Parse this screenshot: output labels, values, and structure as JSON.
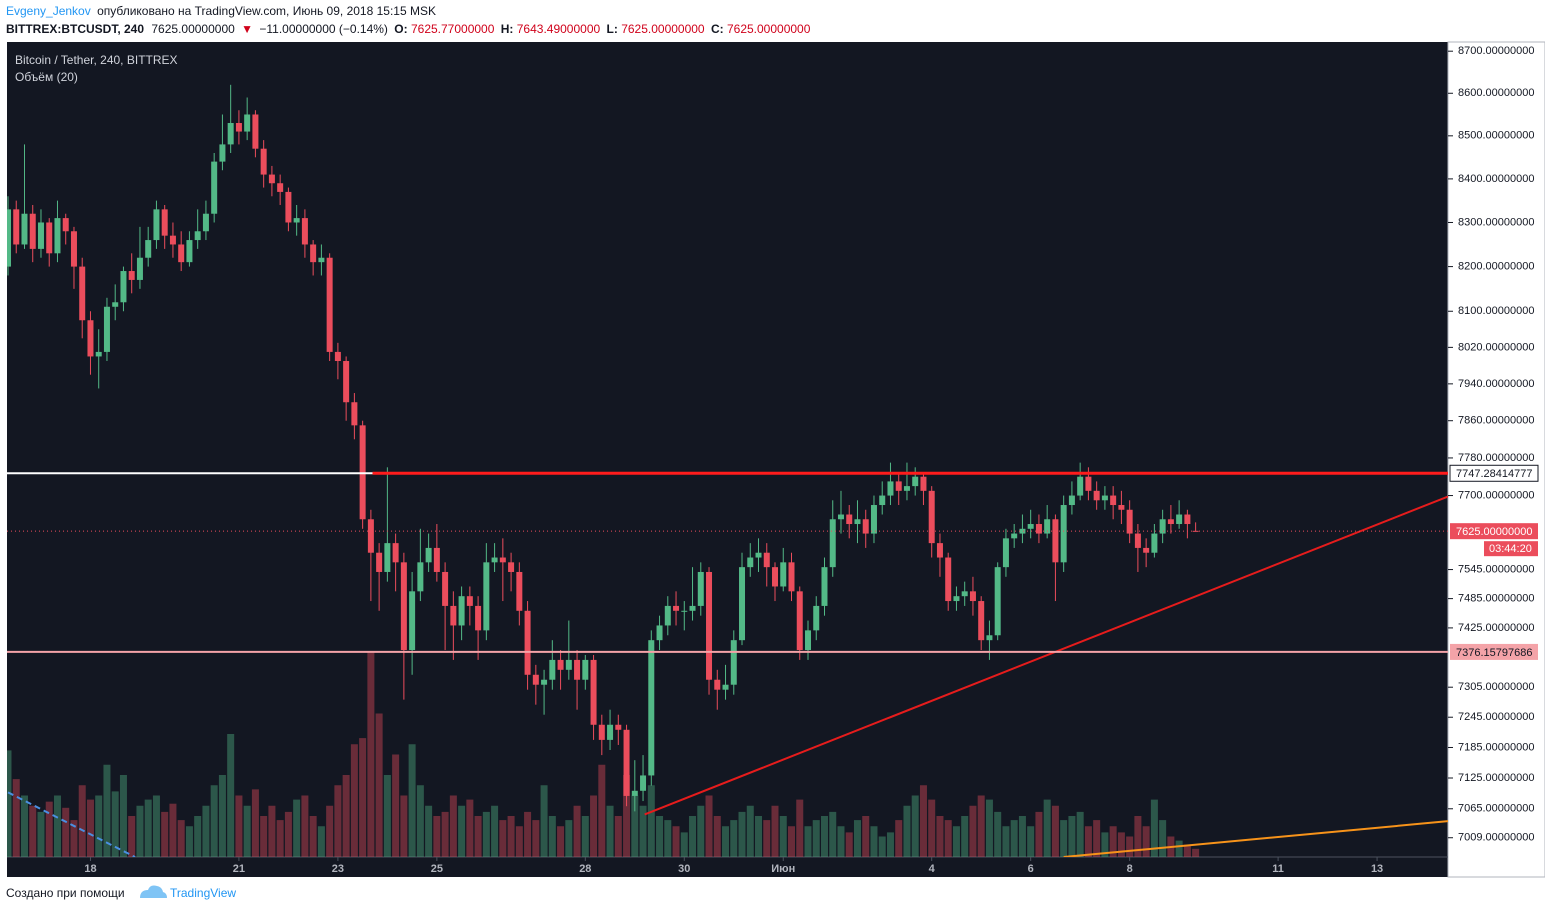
{
  "header": {
    "author": "Evgeny_Jenkov",
    "published": "опубликовано на TradingView.com, Июнь 09, 2018 15:15 MSK",
    "symbol": "BITTREX:BTCUSDT, 240",
    "last": "7625.00000000",
    "arrow": "▼",
    "change": "−11.00000000 (−0.14%)",
    "o_label": "O:",
    "o": "7625.77000000",
    "h_label": "H:",
    "h": "7643.49000000",
    "l_label": "L:",
    "l": "7625.00000000",
    "c_label": "C:",
    "c": "7625.00000000"
  },
  "footer": {
    "credit": "Создано при помощи",
    "brand": "TradingView"
  },
  "chart_data": {
    "type": "candlestick",
    "title": "Bitcoin / Tether, 240, BITTREX",
    "indicator": "Объём (20)",
    "log": true,
    "up_color": "#53b987",
    "down_color": "#eb4d5c",
    "background": "#131722",
    "open": [
      8200,
      8330,
      8250,
      8320,
      8240,
      8300,
      8230,
      8310,
      8280,
      8200,
      8080,
      8000,
      8010,
      8110,
      8120,
      8190,
      8170,
      8220,
      8260,
      8330,
      8270,
      8250,
      8210,
      8260,
      8280,
      8320,
      8440,
      8480,
      8530,
      8510,
      8550,
      8470,
      8410,
      8390,
      8370,
      8300,
      8310,
      8250,
      8210,
      8220,
      8010,
      7990,
      7900,
      7850,
      7650,
      7580,
      7540,
      7600,
      7560,
      7380,
      7500,
      7560,
      7590,
      7540,
      7470,
      7430,
      7490,
      7470,
      7420,
      7560,
      7570,
      7560,
      7540,
      7460,
      7330,
      7310,
      7320,
      7360,
      7340,
      7360,
      7320,
      7360,
      7230,
      7200,
      7230,
      7220,
      7090,
      7100,
      7130,
      7400,
      7430,
      7470,
      7460,
      7460,
      7470,
      7540,
      7320,
      7300,
      7310,
      7400,
      7550,
      7570,
      7580,
      7550,
      7510,
      7560,
      7500,
      7380,
      7420,
      7470,
      7550,
      7650,
      7660,
      7640,
      7650,
      7620,
      7680,
      7700,
      7730,
      7710,
      7720,
      7740,
      7710,
      7600,
      7570,
      7480,
      7490,
      7500,
      7480,
      7400,
      7410,
      7550,
      7610,
      7620,
      7630,
      7640,
      7620,
      7650,
      7560,
      7680,
      7700,
      7740,
      7710,
      7690,
      7700,
      7680,
      7670,
      7620,
      7590,
      7580,
      7620,
      7650,
      7640,
      7660,
      7625.77
    ],
    "high": [
      8360,
      8350,
      8480,
      8340,
      8330,
      8310,
      8350,
      8320,
      8290,
      8220,
      8100,
      8060,
      8130,
      8160,
      8200,
      8230,
      8290,
      8290,
      8350,
      8340,
      8300,
      8280,
      8280,
      8330,
      8350,
      8460,
      8550,
      8620,
      8560,
      8590,
      8560,
      8490,
      8430,
      8410,
      8380,
      8340,
      8330,
      8260,
      8250,
      8230,
      8030,
      8000,
      7920,
      7860,
      7670,
      7600,
      7760,
      7620,
      7580,
      7540,
      7630,
      7620,
      7640,
      7560,
      7500,
      7510,
      7510,
      7490,
      7600,
      7600,
      7610,
      7580,
      7560,
      7480,
      7350,
      7340,
      7400,
      7380,
      7440,
      7380,
      7370,
      7370,
      7250,
      7260,
      7250,
      7230,
      7160,
      7170,
      7420,
      7450,
      7490,
      7500,
      7480,
      7550,
      7560,
      7550,
      7340,
      7350,
      7420,
      7580,
      7600,
      7610,
      7600,
      7560,
      7590,
      7580,
      7510,
      7440,
      7490,
      7570,
      7690,
      7710,
      7680,
      7690,
      7670,
      7700,
      7730,
      7770,
      7750,
      7770,
      7760,
      7750,
      7720,
      7620,
      7580,
      7510,
      7520,
      7530,
      7490,
      7440,
      7560,
      7630,
      7640,
      7660,
      7670,
      7660,
      7680,
      7660,
      7700,
      7730,
      7770,
      7760,
      7730,
      7720,
      7720,
      7710,
      7690,
      7640,
      7610,
      7640,
      7670,
      7680,
      7690,
      7670,
      7643.49
    ],
    "low": [
      8180,
      8230,
      8240,
      8210,
      8220,
      8200,
      8210,
      8250,
      8150,
      8040,
      7960,
      7930,
      7990,
      8080,
      8100,
      8140,
      8150,
      8200,
      8240,
      8240,
      8220,
      8190,
      8200,
      8240,
      8260,
      8300,
      8420,
      8460,
      8480,
      8490,
      8450,
      8380,
      8360,
      8340,
      8280,
      8270,
      8220,
      8180,
      8180,
      7990,
      7950,
      7860,
      7820,
      7630,
      7480,
      7460,
      7520,
      7500,
      7280,
      7330,
      7480,
      7540,
      7520,
      7380,
      7360,
      7400,
      7430,
      7360,
      7400,
      7540,
      7480,
      7500,
      7430,
      7300,
      7270,
      7250,
      7300,
      7300,
      7320,
      7260,
      7300,
      7200,
      7170,
      7180,
      7190,
      7070,
      7060,
      7080,
      7110,
      7380,
      7410,
      7430,
      7420,
      7440,
      7450,
      7290,
      7260,
      7280,
      7290,
      7390,
      7530,
      7540,
      7510,
      7480,
      7500,
      7480,
      7360,
      7360,
      7400,
      7450,
      7530,
      7620,
      7610,
      7600,
      7590,
      7600,
      7660,
      7680,
      7680,
      7690,
      7700,
      7680,
      7570,
      7530,
      7460,
      7460,
      7470,
      7450,
      7380,
      7360,
      7400,
      7530,
      7590,
      7600,
      7610,
      7600,
      7610,
      7480,
      7540,
      7660,
      7690,
      7690,
      7670,
      7670,
      7650,
      7640,
      7600,
      7540,
      7550,
      7570,
      7600,
      7620,
      7630,
      7610,
      7625
    ],
    "close": [
      8330,
      8250,
      8320,
      8240,
      8300,
      8230,
      8310,
      8280,
      8200,
      8080,
      8000,
      8010,
      8110,
      8120,
      8190,
      8170,
      8220,
      8260,
      8330,
      8270,
      8250,
      8210,
      8260,
      8280,
      8320,
      8440,
      8480,
      8530,
      8510,
      8550,
      8470,
      8410,
      8390,
      8370,
      8300,
      8310,
      8250,
      8210,
      8220,
      8010,
      7990,
      7900,
      7850,
      7650,
      7580,
      7540,
      7600,
      7560,
      7380,
      7500,
      7560,
      7590,
      7540,
      7470,
      7430,
      7490,
      7470,
      7420,
      7560,
      7570,
      7560,
      7540,
      7460,
      7330,
      7310,
      7320,
      7360,
      7340,
      7360,
      7320,
      7360,
      7230,
      7200,
      7230,
      7220,
      7090,
      7100,
      7130,
      7400,
      7430,
      7470,
      7460,
      7460,
      7470,
      7540,
      7320,
      7300,
      7310,
      7400,
      7550,
      7570,
      7580,
      7550,
      7510,
      7560,
      7500,
      7380,
      7420,
      7470,
      7550,
      7650,
      7660,
      7640,
      7650,
      7620,
      7680,
      7700,
      7730,
      7710,
      7720,
      7740,
      7710,
      7600,
      7570,
      7480,
      7490,
      7500,
      7480,
      7400,
      7410,
      7550,
      7610,
      7620,
      7630,
      7640,
      7620,
      7650,
      7560,
      7680,
      7700,
      7740,
      7710,
      7690,
      7700,
      7680,
      7670,
      7620,
      7590,
      7580,
      7620,
      7650,
      7640,
      7660,
      7640,
      7625
    ],
    "volume": [
      52,
      38,
      30,
      25,
      22,
      27,
      30,
      24,
      18,
      35,
      28,
      30,
      45,
      32,
      40,
      20,
      25,
      28,
      30,
      22,
      26,
      18,
      15,
      20,
      25,
      35,
      40,
      60,
      30,
      25,
      33,
      20,
      25,
      18,
      22,
      28,
      30,
      20,
      15,
      25,
      35,
      40,
      55,
      58,
      100,
      70,
      40,
      50,
      30,
      55,
      35,
      25,
      20,
      22,
      30,
      25,
      28,
      20,
      22,
      25,
      18,
      20,
      15,
      22,
      18,
      35,
      20,
      15,
      18,
      25,
      20,
      30,
      45,
      25,
      20,
      40,
      30,
      25,
      35,
      20,
      18,
      15,
      12,
      20,
      25,
      30,
      20,
      15,
      18,
      22,
      25,
      20,
      18,
      25,
      20,
      15,
      28,
      15,
      18,
      20,
      22,
      15,
      12,
      18,
      20,
      15,
      10,
      12,
      18,
      25,
      30,
      35,
      28,
      20,
      18,
      15,
      20,
      25,
      30,
      28,
      22,
      15,
      18,
      20,
      15,
      22,
      28,
      25,
      18,
      20,
      22,
      15,
      18,
      12,
      15,
      12,
      10,
      20,
      15,
      28,
      18,
      10,
      8,
      6,
      4
    ],
    "volume_ylim": [
      0,
      100
    ],
    "xlim": [
      -0.12,
      174.6
    ],
    "xticks": [
      {
        "value": 10,
        "label": "18"
      },
      {
        "value": 28,
        "label": "21"
      },
      {
        "value": 40,
        "label": "23"
      },
      {
        "value": 52,
        "label": "25"
      },
      {
        "value": 70,
        "label": "28"
      },
      {
        "value": 82,
        "label": "30"
      },
      {
        "value": 94,
        "label": "Июн"
      },
      {
        "value": 112,
        "label": "4"
      },
      {
        "value": 124,
        "label": "6"
      },
      {
        "value": 136,
        "label": "8"
      },
      {
        "value": 154,
        "label": "11"
      },
      {
        "value": 166,
        "label": "13"
      }
    ],
    "ylim": [
      6972,
      8722
    ],
    "yticks": [
      {
        "value": 8700,
        "label": "8700.00000000"
      },
      {
        "value": 8600,
        "label": "8600.00000000"
      },
      {
        "value": 8500,
        "label": "8500.00000000"
      },
      {
        "value": 8400,
        "label": "8400.00000000"
      },
      {
        "value": 8300,
        "label": "8300.00000000"
      },
      {
        "value": 8200,
        "label": "8200.00000000"
      },
      {
        "value": 8100,
        "label": "8100.00000000"
      },
      {
        "value": 8020,
        "label": "8020.00000000"
      },
      {
        "value": 7940,
        "label": "7940.00000000"
      },
      {
        "value": 7860,
        "label": "7860.00000000"
      },
      {
        "value": 7780,
        "label": "7780.00000000"
      },
      {
        "value": 7700,
        "label": "7700.00000000"
      },
      {
        "value": 7545,
        "label": "7545.00000000"
      },
      {
        "value": 7485,
        "label": "7485.00000000"
      },
      {
        "value": 7425,
        "label": "7425.00000000"
      },
      {
        "value": 7305,
        "label": "7305.00000000"
      },
      {
        "value": 7245,
        "label": "7245.00000000"
      },
      {
        "value": 7185,
        "label": "7185.00000000"
      },
      {
        "value": 7125,
        "label": "7125.00000000"
      },
      {
        "value": 7065,
        "label": "7065.00000000"
      },
      {
        "value": 7009,
        "label": "7009.00000000"
      }
    ],
    "hlines": [
      {
        "price": 7747.28414777,
        "colors": [
          "#ffffff",
          "#ff1c1c"
        ],
        "split": 44.2,
        "width": 3,
        "label_bg": "#ffffff",
        "label_color": "#131722"
      },
      {
        "price": 7625,
        "label": "7625.00000000",
        "colors": [
          "#eb4d5c"
        ],
        "dash": true,
        "width": 1,
        "label_bg": "#eb4d5c",
        "label_color": "#ffffff",
        "countdown": "03:44:20"
      },
      {
        "price": 7376.15797686,
        "colors": [
          "#f4a3a8"
        ],
        "width": 2,
        "label_bg": "#f4a3a8",
        "label_color": "#131722"
      }
    ],
    "lines": [
      {
        "x": [
          77.2,
          174.6
        ],
        "y": [
          7054,
          7698
        ],
        "color": "#e61c1c",
        "width": 2
      },
      {
        "x": [
          128,
          174.6
        ],
        "y": [
          6972,
          7041
        ],
        "color": "#f7931a",
        "width": 2
      },
      {
        "x": [
          0,
          15.4
        ],
        "y": [
          7097,
          6972
        ],
        "color": "#4a90e2",
        "width": 2,
        "dash": true
      }
    ]
  }
}
